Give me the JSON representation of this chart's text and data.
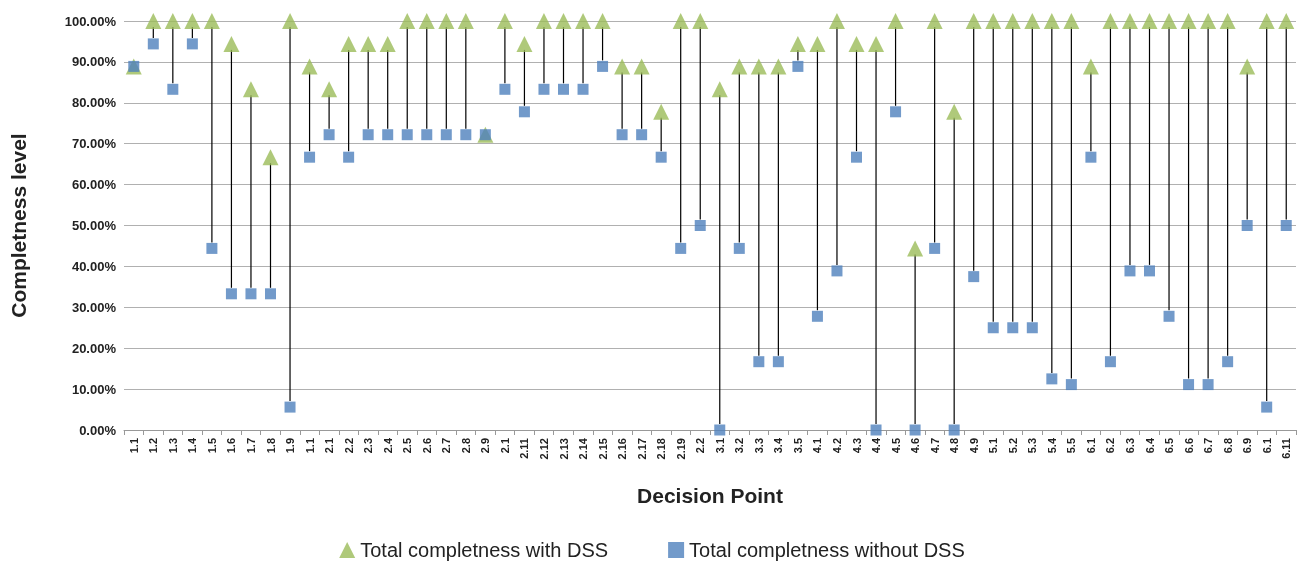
{
  "chart_data": {
    "type": "scatter",
    "xlabel": "Decision Point",
    "ylabel": "Completness level",
    "categories": [
      "1.1",
      "1.2",
      "1.3",
      "1.4",
      "1.5",
      "1.6",
      "1.7",
      "1.8",
      "1.9",
      "1.1",
      "2.1",
      "2.2",
      "2.3",
      "2.4",
      "2.5",
      "2.6",
      "2.7",
      "2.8",
      "2.9",
      "2.1",
      "2.11",
      "2.12",
      "2.13",
      "2.14",
      "2.15",
      "2.16",
      "2.17",
      "2.18",
      "2.19",
      "2.2",
      "3.1",
      "3.2",
      "3.3",
      "3.4",
      "3.5",
      "4.1",
      "4.2",
      "4.3",
      "4.4",
      "4.5",
      "4.6",
      "4.7",
      "4.8",
      "4.9",
      "5.1",
      "5.2",
      "5.3",
      "5.4",
      "5.5",
      "6.1",
      "6.2",
      "6.3",
      "6.4",
      "6.5",
      "6.6",
      "6.7",
      "6.8",
      "6.9",
      "6.1",
      "6.11"
    ],
    "series": [
      {
        "name": "Total completness with DSS",
        "color": "#9bbb59",
        "marker": "triangle",
        "values": [
          88.9,
          100,
          100,
          100,
          100,
          94.4,
          83.3,
          66.7,
          100,
          88.9,
          83.3,
          94.4,
          94.4,
          94.4,
          100,
          100,
          100,
          100,
          72.2,
          100,
          94.4,
          100,
          100,
          100,
          100,
          88.9,
          88.9,
          77.8,
          100,
          100,
          83.3,
          88.9,
          88.9,
          88.9,
          94.4,
          94.4,
          100,
          94.4,
          94.4,
          100,
          44.4,
          100,
          77.8,
          100,
          100,
          100,
          100,
          100,
          100,
          88.9,
          100,
          100,
          100,
          100,
          100,
          100,
          100,
          88.9,
          100,
          100
        ]
      },
      {
        "name": "Total completness without DSS",
        "color": "#4f81bd",
        "marker": "square",
        "values": [
          88.9,
          94.4,
          83.3,
          94.4,
          44.4,
          33.3,
          33.3,
          33.3,
          5.6,
          66.7,
          72.2,
          66.7,
          72.2,
          72.2,
          72.2,
          72.2,
          72.2,
          72.2,
          72.2,
          83.3,
          77.8,
          83.3,
          83.3,
          83.3,
          88.9,
          72.2,
          72.2,
          66.7,
          44.4,
          50,
          0,
          44.4,
          16.7,
          16.7,
          88.9,
          27.8,
          38.9,
          66.7,
          0,
          77.8,
          0,
          44.4,
          0,
          37.5,
          25,
          25,
          25,
          12.5,
          11.1,
          66.7,
          16.7,
          38.9,
          38.9,
          27.8,
          11.1,
          11.1,
          16.7,
          50,
          5.6,
          50
        ]
      }
    ],
    "ylim": [
      0,
      100
    ],
    "yticks": [
      {
        "value": 0,
        "label": "0.00%"
      },
      {
        "value": 10,
        "label": "10.00%"
      },
      {
        "value": 20,
        "label": "20.00%"
      },
      {
        "value": 30,
        "label": "30.00%"
      },
      {
        "value": 40,
        "label": "40.00%"
      },
      {
        "value": 50,
        "label": "50.00%"
      },
      {
        "value": 60,
        "label": "60.00%"
      },
      {
        "value": 70,
        "label": "70.00%"
      },
      {
        "value": 80,
        "label": "80.00%"
      },
      {
        "value": 90,
        "label": "90.00%"
      },
      {
        "value": 100,
        "label": "100.00%"
      }
    ],
    "grid": "y",
    "legend": "bottom"
  }
}
